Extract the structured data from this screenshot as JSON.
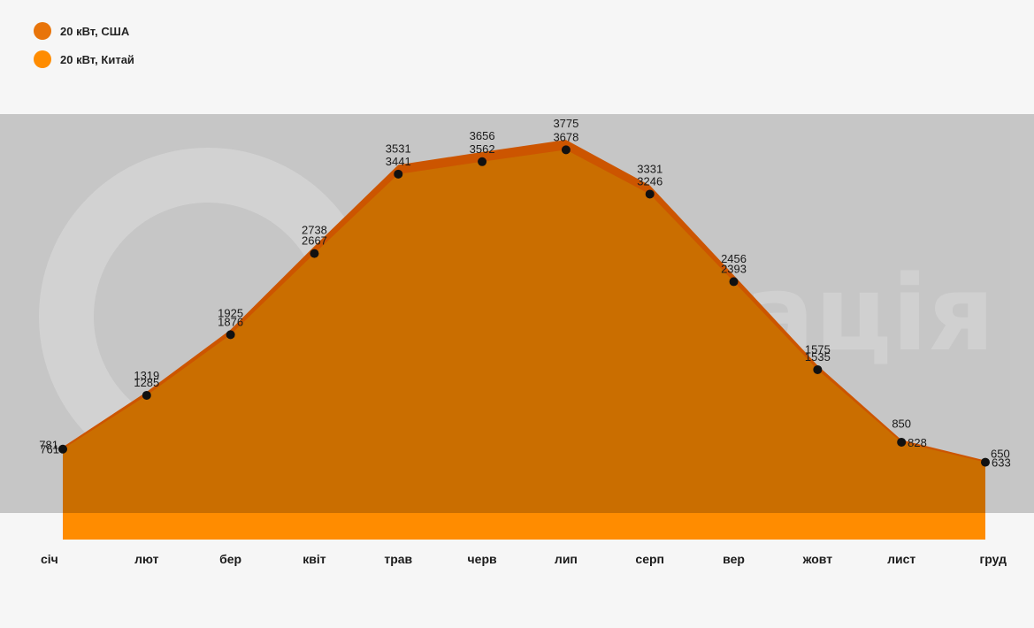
{
  "legend": [
    {
      "label": "20 кВт, США",
      "color": "#e8740a"
    },
    {
      "label": "20 кВт, Китай",
      "color": "#ff8c00"
    }
  ],
  "watermark": {
    "text": "Генерація"
  },
  "chart_data": {
    "type": "area",
    "categories": [
      "січ",
      "лют",
      "бер",
      "квіт",
      "трав",
      "черв",
      "лип",
      "серп",
      "вер",
      "жовт",
      "лист",
      "груд"
    ],
    "series": [
      {
        "name": "20 кВт, США",
        "color": "#cc5500",
        "values": [
          781,
          1319,
          1925,
          2738,
          3531,
          3656,
          3775,
          3331,
          2456,
          1575,
          850,
          650
        ]
      },
      {
        "name": "20 кВт, Китай",
        "color": "#c97000",
        "values": [
          761,
          1285,
          1876,
          2667,
          3441,
          3562,
          3678,
          3246,
          2393,
          1535,
          828,
          633
        ]
      }
    ],
    "ylim": [
      0,
      4000
    ],
    "grid": false,
    "legend_position": "top-left",
    "colors": {
      "plot_background": "#c6c6c6",
      "base_band": "#ff8c00",
      "marker": "#111111"
    }
  }
}
